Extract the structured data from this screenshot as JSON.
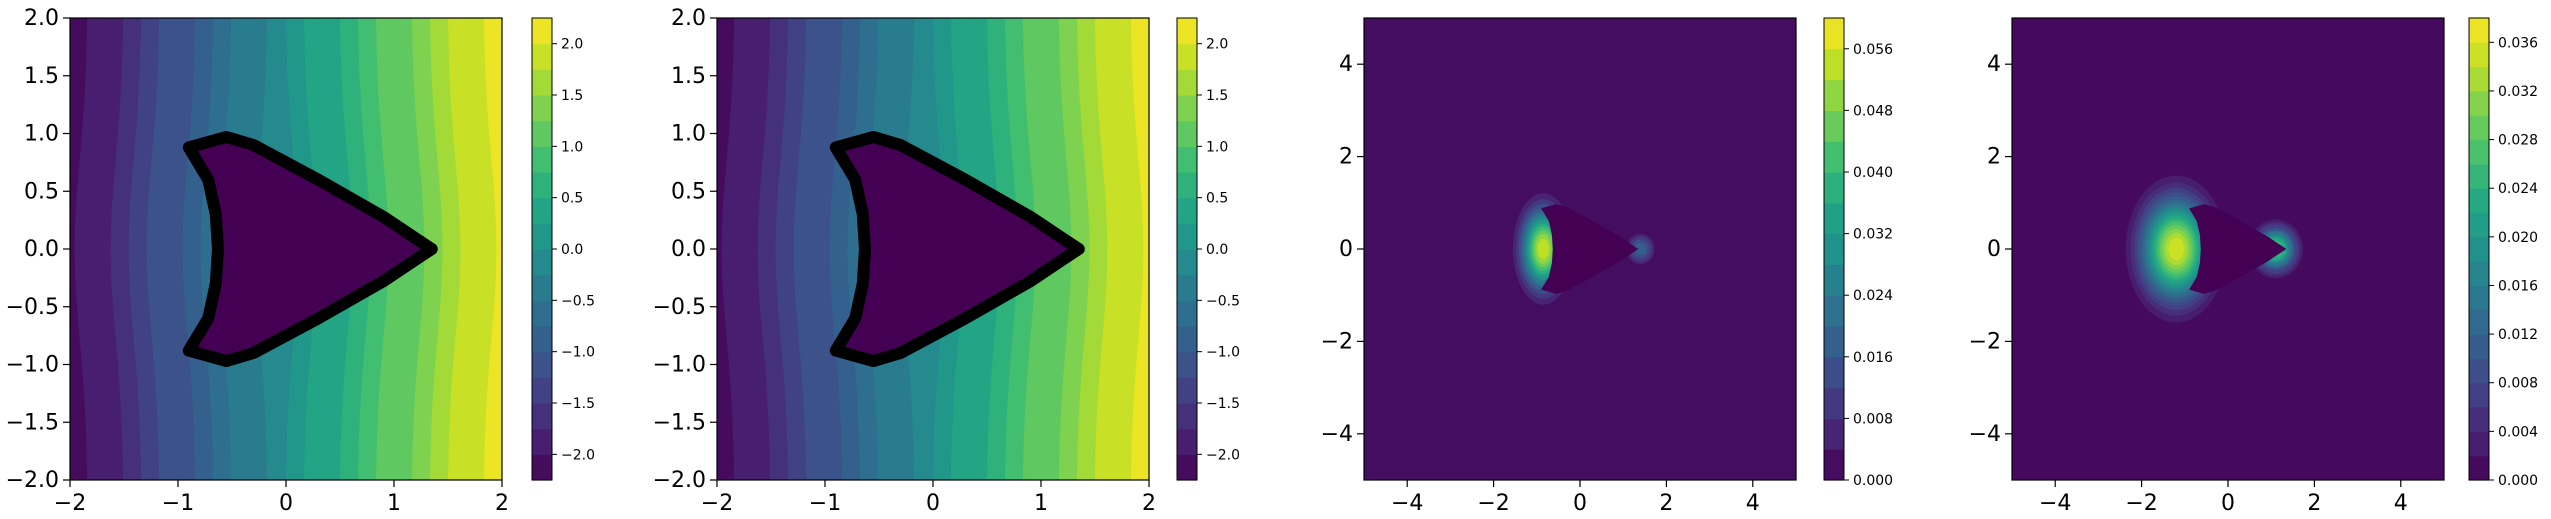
{
  "figure": {
    "panel_count": 4
  },
  "colors": {
    "viridis": [
      "#440154",
      "#482475",
      "#414487",
      "#355f8d",
      "#2a788e",
      "#21918c",
      "#22a884",
      "#44bf70",
      "#7ad151",
      "#bddf26",
      "#fde725"
    ],
    "outline": "#000000",
    "background": "#ffffff"
  },
  "chart_data": [
    {
      "type": "heatmap",
      "panel": "potential-with-body",
      "field": "linear-left-to-right",
      "xlim": [
        -2,
        2
      ],
      "ylim": [
        -2,
        2
      ],
      "x_ticks": [
        "−2",
        "−1",
        "0",
        "1",
        "2"
      ],
      "y_ticks": [
        "2.0",
        "1.5",
        "1.0",
        "0.5",
        "0.0",
        "−0.5",
        "−1.0",
        "−1.5",
        "−2.0"
      ],
      "colorbar": {
        "min": -2.25,
        "max": 2.25,
        "levels": 18,
        "ticks": [
          "2.0",
          "1.5",
          "1.0",
          "0.5",
          "0.0",
          "−0.5",
          "−1.0",
          "−1.5",
          "−2.0"
        ]
      },
      "body_outline": true
    },
    {
      "type": "heatmap",
      "panel": "potential-with-body-2",
      "field": "linear-left-to-right",
      "xlim": [
        -2,
        2
      ],
      "ylim": [
        -2,
        2
      ],
      "x_ticks": [
        "−2",
        "−1",
        "0",
        "1",
        "2"
      ],
      "y_ticks": [
        "2.0",
        "1.5",
        "1.0",
        "0.5",
        "0.0",
        "−0.5",
        "−1.0",
        "−1.5",
        "−2.0"
      ],
      "colorbar": {
        "min": -2.25,
        "max": 2.25,
        "levels": 18,
        "ticks": [
          "2.0",
          "1.5",
          "1.0",
          "0.5",
          "0.0",
          "−0.5",
          "−1.0",
          "−1.5",
          "−2.0"
        ]
      },
      "body_outline": true
    },
    {
      "type": "heatmap",
      "panel": "error-field-1",
      "field": "localized-peaks",
      "xlim": [
        -5,
        5
      ],
      "ylim": [
        -5,
        5
      ],
      "x_ticks": [
        "−4",
        "−2",
        "0",
        "2",
        "4"
      ],
      "y_ticks": [
        "4",
        "2",
        "0",
        "−2",
        "−4"
      ],
      "peaks": [
        {
          "x": -0.85,
          "y": 0.0,
          "value": 0.058,
          "sx": 0.35,
          "sy": 0.6
        },
        {
          "x": 1.4,
          "y": 0.0,
          "value": 0.02,
          "sx": 0.2,
          "sy": 0.2
        }
      ],
      "colorbar": {
        "min": 0.0,
        "max": 0.06,
        "levels": 15,
        "ticks": [
          "0.056",
          "0.048",
          "0.040",
          "0.032",
          "0.024",
          "0.016",
          "0.008",
          "0.000"
        ]
      }
    },
    {
      "type": "heatmap",
      "panel": "error-field-2",
      "field": "localized-peaks",
      "xlim": [
        -5,
        5
      ],
      "ylim": [
        -5,
        5
      ],
      "x_ticks": [
        "−4",
        "−2",
        "0",
        "2",
        "4"
      ],
      "y_ticks": [
        "4",
        "2",
        "0",
        "−2",
        "−4"
      ],
      "peaks": [
        {
          "x": -1.2,
          "y": 0.0,
          "value": 0.037,
          "sx": 0.55,
          "sy": 0.75
        },
        {
          "x": 1.1,
          "y": 0.0,
          "value": 0.03,
          "sx": 0.3,
          "sy": 0.3
        }
      ],
      "colorbar": {
        "min": 0.0,
        "max": 0.038,
        "levels": 19,
        "ticks": [
          "0.036",
          "0.032",
          "0.028",
          "0.024",
          "0.020",
          "0.016",
          "0.012",
          "0.008",
          "0.004",
          "0.000"
        ]
      }
    }
  ]
}
